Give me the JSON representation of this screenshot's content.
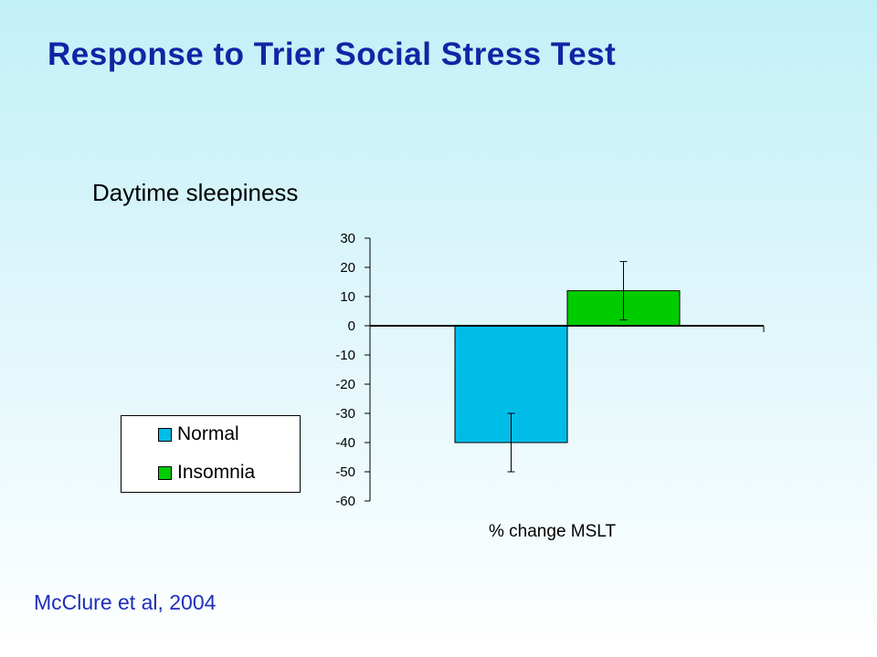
{
  "slide": {
    "title": "Response to Trier Social Stress Test",
    "citation": "McClure et al, 2004"
  },
  "chart_data": {
    "type": "bar",
    "title": "Daytime sleepiness",
    "xlabel": "% change MSLT",
    "ylabel": "",
    "ylim": [
      -60,
      30
    ],
    "yticks": [
      30,
      20,
      10,
      0,
      -10,
      -20,
      -30,
      -40,
      -50,
      -60
    ],
    "series": [
      {
        "name": "Normal",
        "value": -40,
        "error": 10,
        "color": "#00bde8"
      },
      {
        "name": "Insomnia",
        "value": 12,
        "error": 10,
        "color": "#00cc00"
      }
    ],
    "legend_placement": "left",
    "grid": false
  }
}
